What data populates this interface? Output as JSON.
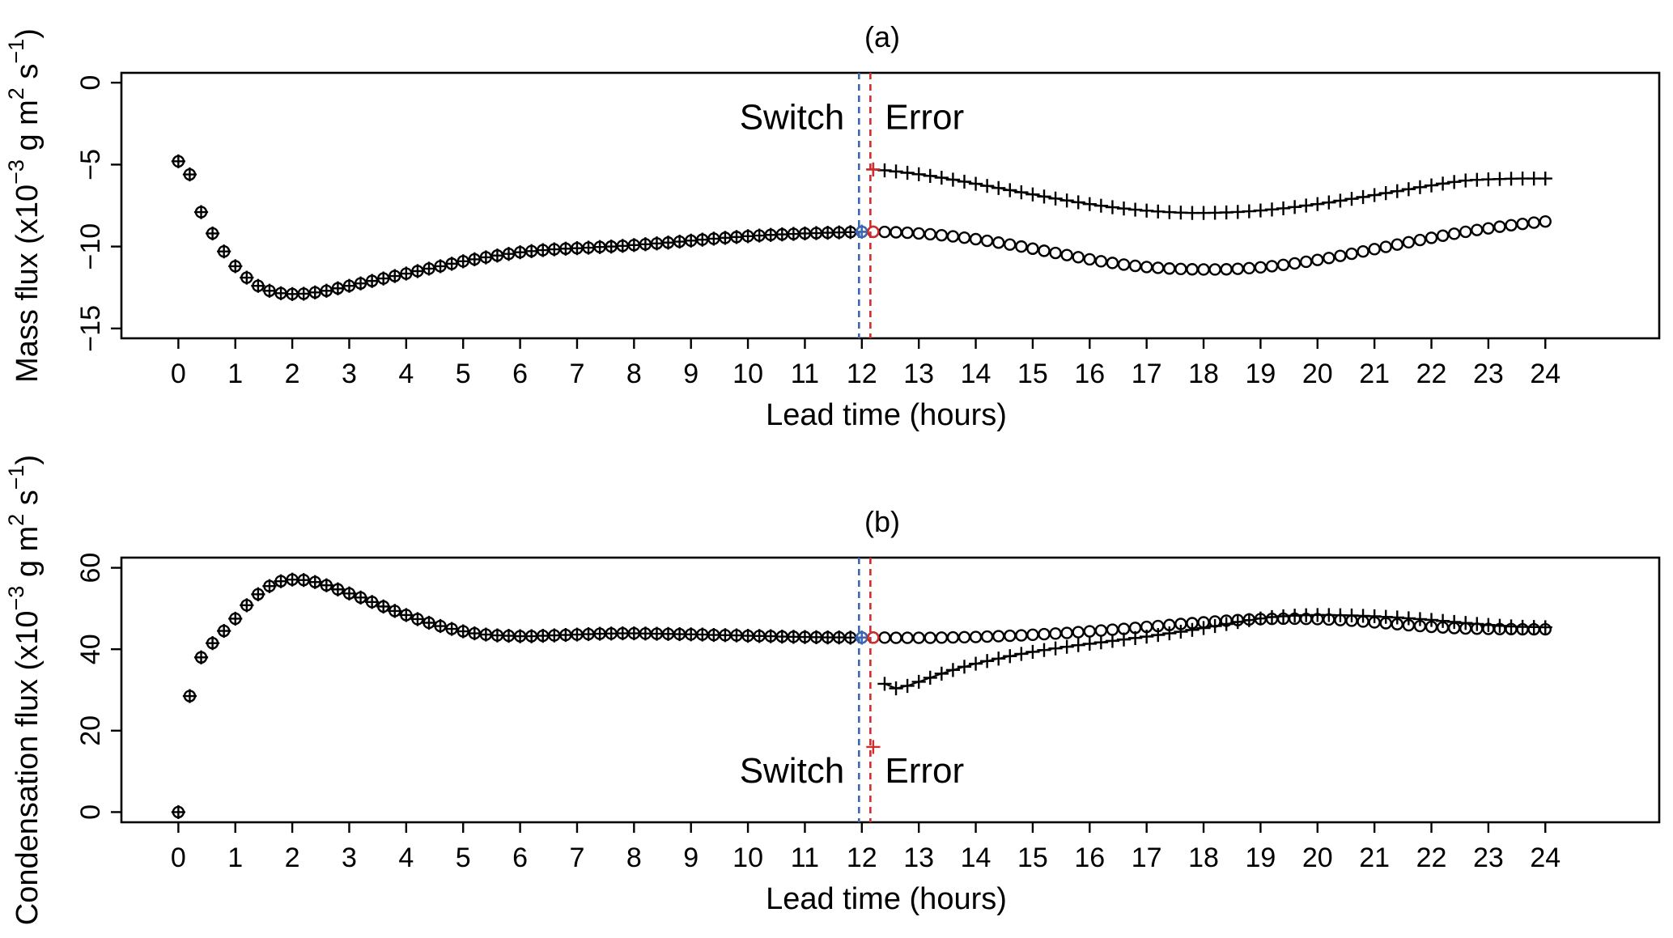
{
  "figure": {
    "xlabel": "Lead time (hours)",
    "colors": {
      "black": "#000000",
      "switch_blue": "#3A68B5",
      "error_red": "#D02C2C",
      "background": "#ffffff"
    }
  },
  "chart_data": [
    {
      "type": "scatter",
      "id": "a",
      "title": "(a)",
      "xlabel": "Lead time (hours)",
      "ylabel_parts": [
        [
          "t",
          "Mass flux (x10"
        ],
        [
          "sup",
          "−3"
        ],
        [
          "t",
          " g m"
        ],
        [
          "sup",
          "2"
        ],
        [
          "t",
          " s"
        ],
        [
          "sup",
          "−1"
        ],
        [
          "t",
          ")"
        ]
      ],
      "xlim": [
        -1,
        26
      ],
      "ylim_top": 0.6,
      "ylim_bottom": -15.6,
      "xticks": [
        0,
        1,
        2,
        3,
        4,
        5,
        6,
        7,
        8,
        9,
        10,
        11,
        12,
        13,
        14,
        15,
        16,
        17,
        18,
        19,
        20,
        21,
        22,
        23,
        24
      ],
      "xtick_labels": [
        "0",
        "1",
        "2",
        "3",
        "4",
        "5",
        "6",
        "7",
        "8",
        "9",
        "10",
        "11",
        "12",
        "13",
        "14",
        "15",
        "16",
        "17",
        "18",
        "19",
        "20",
        "21",
        "22",
        "23",
        "24"
      ],
      "yticks": [
        0,
        -5,
        -10,
        -15
      ],
      "ytick_labels": [
        "0",
        "−5",
        "−10",
        "−15"
      ],
      "grid": false,
      "annotations": {
        "switch_label": "Switch",
        "error_label": "Error",
        "switch_line_x": 11.95,
        "error_line_x": 12.15,
        "label_y": -2.26
      },
      "series": [
        {
          "name": "analysis-overlap",
          "marker": "circle-plus",
          "color": "black",
          "line": false,
          "x_start": 0,
          "x_step": 0.2,
          "values": [
            -4.8,
            -5.6,
            -7.9,
            -9.2,
            -10.3,
            -11.2,
            -11.9,
            -12.4,
            -12.7,
            -12.85,
            -12.9,
            -12.88,
            -12.8,
            -12.7,
            -12.55,
            -12.4,
            -12.25,
            -12.1,
            -11.95,
            -11.8,
            -11.65,
            -11.5,
            -11.35,
            -11.2,
            -11.05,
            -10.9,
            -10.78,
            -10.66,
            -10.55,
            -10.45,
            -10.35,
            -10.28,
            -10.22,
            -10.17,
            -10.13,
            -10.1,
            -10.07,
            -10.03,
            -10.0,
            -9.96,
            -9.91,
            -9.86,
            -9.81,
            -9.76,
            -9.7,
            -9.64,
            -9.58,
            -9.52,
            -9.47,
            -9.42,
            -9.37,
            -9.33,
            -9.29,
            -9.26,
            -9.23,
            -9.2,
            -9.18,
            -9.16,
            -9.14,
            -9.12,
            -9.1
          ]
        },
        {
          "name": "control-circles",
          "marker": "circle",
          "color": "black",
          "line": false,
          "x_start": 12.2,
          "x_step": 0.2,
          "values": [
            -9.1,
            -9.11,
            -9.13,
            -9.16,
            -9.2,
            -9.25,
            -9.31,
            -9.38,
            -9.46,
            -9.55,
            -9.65,
            -9.76,
            -9.88,
            -10.0,
            -10.13,
            -10.26,
            -10.39,
            -10.52,
            -10.65,
            -10.78,
            -10.9,
            -11.0,
            -11.1,
            -11.18,
            -11.25,
            -11.3,
            -11.34,
            -11.37,
            -11.39,
            -11.4,
            -11.4,
            -11.39,
            -11.36,
            -11.32,
            -11.27,
            -11.2,
            -11.12,
            -11.03,
            -10.93,
            -10.82,
            -10.7,
            -10.57,
            -10.44,
            -10.3,
            -10.16,
            -10.02,
            -9.88,
            -9.74,
            -9.6,
            -9.47,
            -9.34,
            -9.22,
            -9.1,
            -8.99,
            -8.89,
            -8.79,
            -8.7,
            -8.62,
            -8.54,
            -8.47
          ]
        },
        {
          "name": "error-plus",
          "marker": "plus",
          "color": "black",
          "line": true,
          "x_start": 12.2,
          "x_step": 0.2,
          "values": [
            -5.3,
            -5.35,
            -5.42,
            -5.5,
            -5.59,
            -5.69,
            -5.8,
            -5.92,
            -6.04,
            -6.17,
            -6.3,
            -6.43,
            -6.56,
            -6.69,
            -6.82,
            -6.95,
            -7.07,
            -7.19,
            -7.3,
            -7.41,
            -7.51,
            -7.6,
            -7.68,
            -7.75,
            -7.81,
            -7.86,
            -7.9,
            -7.93,
            -7.95,
            -7.95,
            -7.94,
            -7.92,
            -7.89,
            -7.85,
            -7.8,
            -7.74,
            -7.67,
            -7.59,
            -7.5,
            -7.41,
            -7.31,
            -7.2,
            -7.09,
            -6.98,
            -6.86,
            -6.74,
            -6.62,
            -6.5,
            -6.38,
            -6.27,
            -6.16,
            -6.06,
            -5.97,
            -5.93,
            -5.9,
            -5.88,
            -5.86,
            -5.85,
            -5.85,
            -5.85
          ]
        }
      ],
      "special_points": [
        {
          "name": "switch-point",
          "x": 12.0,
          "y": -9.1,
          "marker": "circle-plus",
          "color": "switch_blue"
        },
        {
          "name": "first-error-circle",
          "x": 12.2,
          "y": -9.1,
          "marker": "circle",
          "color": "error_red"
        },
        {
          "name": "first-error-plus",
          "x": 12.2,
          "y": -5.3,
          "marker": "plus",
          "color": "error_red"
        }
      ]
    },
    {
      "type": "scatter",
      "id": "b",
      "title": "(b)",
      "xlabel": "Lead time (hours)",
      "ylabel_parts": [
        [
          "t",
          "Condensation flux (x10"
        ],
        [
          "sup",
          "−3"
        ],
        [
          "t",
          " g m"
        ],
        [
          "sup",
          "2"
        ],
        [
          "t",
          " s"
        ],
        [
          "sup",
          "−1"
        ],
        [
          "t",
          ")"
        ]
      ],
      "xlim": [
        -1,
        26
      ],
      "ylim_top": 62.5,
      "ylim_bottom": -2.5,
      "xticks": [
        0,
        1,
        2,
        3,
        4,
        5,
        6,
        7,
        8,
        9,
        10,
        11,
        12,
        13,
        14,
        15,
        16,
        17,
        18,
        19,
        20,
        21,
        22,
        23,
        24
      ],
      "xtick_labels": [
        "0",
        "1",
        "2",
        "3",
        "4",
        "5",
        "6",
        "7",
        "8",
        "9",
        "10",
        "11",
        "12",
        "13",
        "14",
        "15",
        "16",
        "17",
        "18",
        "19",
        "20",
        "21",
        "22",
        "23",
        "24"
      ],
      "yticks": [
        0,
        20,
        40,
        60
      ],
      "ytick_labels": [
        "0",
        "20",
        "40",
        "60"
      ],
      "grid": false,
      "annotations": {
        "switch_label": "Switch",
        "error_label": "Error",
        "switch_line_x": 11.95,
        "error_line_x": 12.15,
        "label_y": 9.6
      },
      "series": [
        {
          "name": "analysis-overlap",
          "marker": "circle-plus",
          "color": "black",
          "line": false,
          "x_start": 0,
          "x_step": 0.2,
          "values": [
            0,
            28.5,
            38,
            41.5,
            44.5,
            47.5,
            50.8,
            53.5,
            55.5,
            56.7,
            57.1,
            57.0,
            56.5,
            55.7,
            54.7,
            53.7,
            52.7,
            51.6,
            50.5,
            49.4,
            48.4,
            47.4,
            46.5,
            45.7,
            45.0,
            44.4,
            43.9,
            43.6,
            43.4,
            43.3,
            43.2,
            43.2,
            43.3,
            43.4,
            43.5,
            43.6,
            43.7,
            43.8,
            43.85,
            43.9,
            43.9,
            43.85,
            43.8,
            43.75,
            43.7,
            43.65,
            43.6,
            43.5,
            43.45,
            43.4,
            43.3,
            43.25,
            43.2,
            43.1,
            43.05,
            43.0,
            42.95,
            42.9,
            42.9,
            42.85,
            42.85
          ]
        },
        {
          "name": "control-circles",
          "marker": "circle",
          "color": "black",
          "line": false,
          "x_start": 12.2,
          "x_step": 0.2,
          "values": [
            42.85,
            42.85,
            42.8,
            42.8,
            42.8,
            42.8,
            42.85,
            42.9,
            42.95,
            43.0,
            43.1,
            43.2,
            43.3,
            43.4,
            43.55,
            43.7,
            43.85,
            44.0,
            44.2,
            44.4,
            44.6,
            44.8,
            45.0,
            45.25,
            45.5,
            45.7,
            45.95,
            46.2,
            46.4,
            46.6,
            46.8,
            47.0,
            47.15,
            47.3,
            47.4,
            47.45,
            47.5,
            47.5,
            47.45,
            47.4,
            47.3,
            47.15,
            47.0,
            46.8,
            46.6,
            46.4,
            46.15,
            45.9,
            45.7,
            45.5,
            45.35,
            45.2,
            45.1,
            45.05,
            45.0,
            44.95,
            44.95,
            44.9,
            44.9,
            44.9
          ]
        },
        {
          "name": "error-plus",
          "marker": "plus",
          "color": "black",
          "line": true,
          "x_start": 12.4,
          "x_step": 0.2,
          "values": [
            31.5,
            30.4,
            31.0,
            32.0,
            33.0,
            34.0,
            34.9,
            35.7,
            36.45,
            37.1,
            37.7,
            38.3,
            38.85,
            39.35,
            39.8,
            40.2,
            40.6,
            41.0,
            41.35,
            41.7,
            42.05,
            42.4,
            42.75,
            43.1,
            43.5,
            43.9,
            44.3,
            44.75,
            45.2,
            45.7,
            46.2,
            46.7,
            47.15,
            47.55,
            47.9,
            48.1,
            48.25,
            48.35,
            48.4,
            48.4,
            48.35,
            48.3,
            48.2,
            48.1,
            47.95,
            47.8,
            47.6,
            47.4,
            47.2,
            46.95,
            46.7,
            46.45,
            46.2,
            45.95,
            45.75,
            45.6,
            45.5,
            45.45,
            45.4
          ]
        }
      ],
      "special_points": [
        {
          "name": "switch-point",
          "x": 12.0,
          "y": 42.85,
          "marker": "circle-plus",
          "color": "switch_blue"
        },
        {
          "name": "first-error-circle",
          "x": 12.2,
          "y": 42.85,
          "marker": "circle",
          "color": "error_red"
        },
        {
          "name": "first-error-plus",
          "x": 12.2,
          "y": 16,
          "marker": "plus",
          "color": "error_red"
        }
      ]
    }
  ],
  "layout_note": ""
}
